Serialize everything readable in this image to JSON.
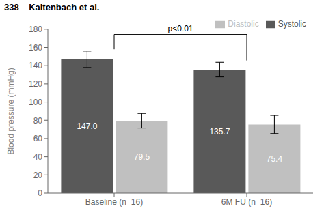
{
  "chart_data": {
    "type": "bar",
    "title": "338    Kaltenbach et al.",
    "categories": [
      "Baseline (n=16)",
      "6M FU (n=16)"
    ],
    "series": [
      {
        "name": "Systolic",
        "color": "#595959",
        "values": [
          147.0,
          135.7
        ],
        "value_labels": [
          "147.0",
          "135.7"
        ],
        "errors": [
          9,
          8
        ]
      },
      {
        "name": "Diastolic",
        "color": "#c0c0c0",
        "values": [
          79.5,
          75.4
        ],
        "value_labels": [
          "79.5",
          "75.4"
        ],
        "errors": [
          8,
          10
        ]
      }
    ],
    "ylabel": "Blood pressure (mmHg)",
    "ylim": [
      0,
      180
    ],
    "yticks": [
      0,
      20,
      40,
      60,
      80,
      100,
      120,
      140,
      160,
      180
    ],
    "data_labels": true,
    "legend": "upper right",
    "grid": false,
    "annotations": [
      {
        "text": "p<0.01"
      }
    ]
  }
}
